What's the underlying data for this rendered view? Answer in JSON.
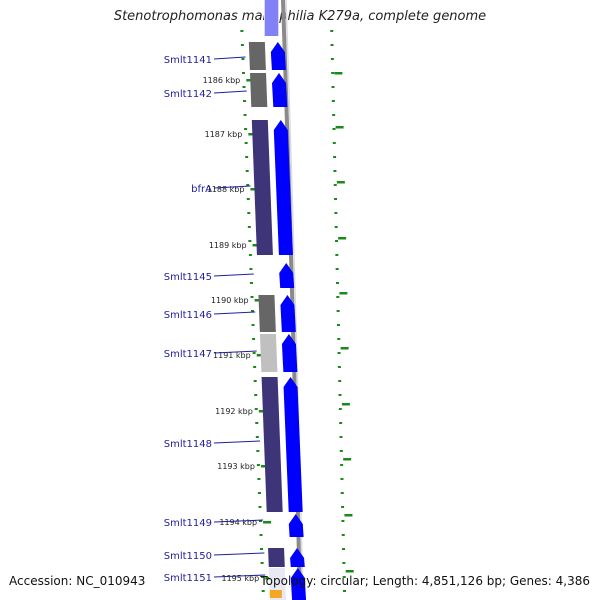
{
  "title": "Stenotrophomonas maltophilia K279a, complete genome",
  "accession": "Accession: NC_010943",
  "info": "Topology: circular; Length: 4,851,126 bp; Genes: 4,386",
  "colors": {
    "cds_forward": "#0000ff",
    "conserved_dark": "#3d3578",
    "conserved_gray": "#666666",
    "conserved_light": "#c0c0c0",
    "tick_green": "#1a8a1a",
    "label_blue": "#1f1f9e",
    "backbone": "#8a8a8a",
    "highlight_orange": "#f5a623"
  },
  "kbp_ticks": [
    {
      "label": "1186 kbp"
    },
    {
      "label": "1187 kbp"
    },
    {
      "label": "1188 kbp"
    },
    {
      "label": "1189 kbp"
    },
    {
      "label": "1190 kbp"
    },
    {
      "label": "1191 kbp"
    },
    {
      "label": "1192 kbp"
    },
    {
      "label": "1193 kbp"
    },
    {
      "label": "1194 kbp"
    },
    {
      "label": "1195 kbp"
    }
  ],
  "genes": [
    {
      "name": "Smlt1141",
      "shade": "gray"
    },
    {
      "name": "Smlt1142",
      "shade": "gray"
    },
    {
      "name": "bfrA",
      "shade": "dark"
    },
    {
      "name": "Smlt1145",
      "shade": "none"
    },
    {
      "name": "Smlt1146",
      "shade": "gray"
    },
    {
      "name": "Smlt1147",
      "shade": "light"
    },
    {
      "name": "Smlt1148",
      "shade": "dark"
    },
    {
      "name": "Smlt1149",
      "shade": "none"
    },
    {
      "name": "Smlt1150",
      "shade": "dark"
    },
    {
      "name": "Smlt1151",
      "shade": "orange"
    }
  ]
}
